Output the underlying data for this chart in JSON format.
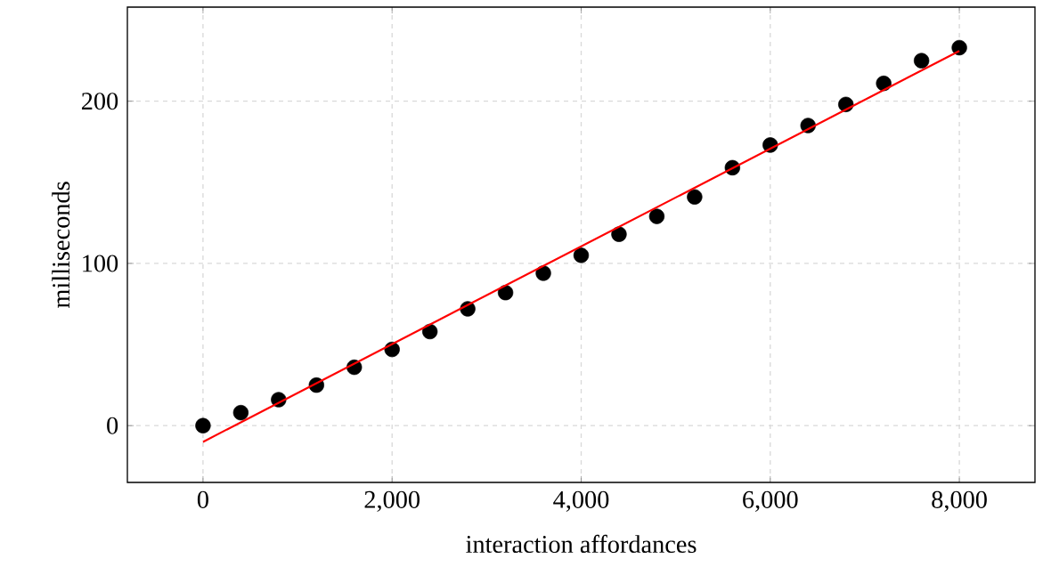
{
  "chart_data": {
    "type": "scatter",
    "xlabel": "interaction affordances",
    "ylabel": "milliseconds",
    "xlim": [
      -800,
      8800
    ],
    "ylim": [
      -35,
      258
    ],
    "xticks": [
      0,
      {
        "value": 2000,
        "label": "2,000"
      },
      {
        "value": 4000,
        "label": "4,000"
      },
      {
        "value": 6000,
        "label": "6,000"
      },
      {
        "value": 8000,
        "label": "8,000"
      }
    ],
    "yticks": [
      0,
      100,
      200
    ],
    "grid": true,
    "series": [
      {
        "color": "#000000",
        "marker": "circle",
        "x": [
          0,
          400,
          800,
          1200,
          1600,
          2000,
          2400,
          2800,
          3200,
          3600,
          4000,
          4400,
          4800,
          5200,
          5600,
          6000,
          6400,
          6800,
          7200,
          7600,
          8000
        ],
        "values": [
          0,
          8,
          16,
          25,
          36,
          47,
          58,
          72,
          82,
          94,
          105,
          118,
          129,
          141,
          159,
          173,
          185,
          198,
          211,
          225,
          233
        ]
      },
      {
        "type": "line",
        "color": "#ff0000",
        "marker": "none",
        "line_style": "solid",
        "x": [
          0,
          8000
        ],
        "values": [
          -10,
          231
        ]
      }
    ]
  }
}
